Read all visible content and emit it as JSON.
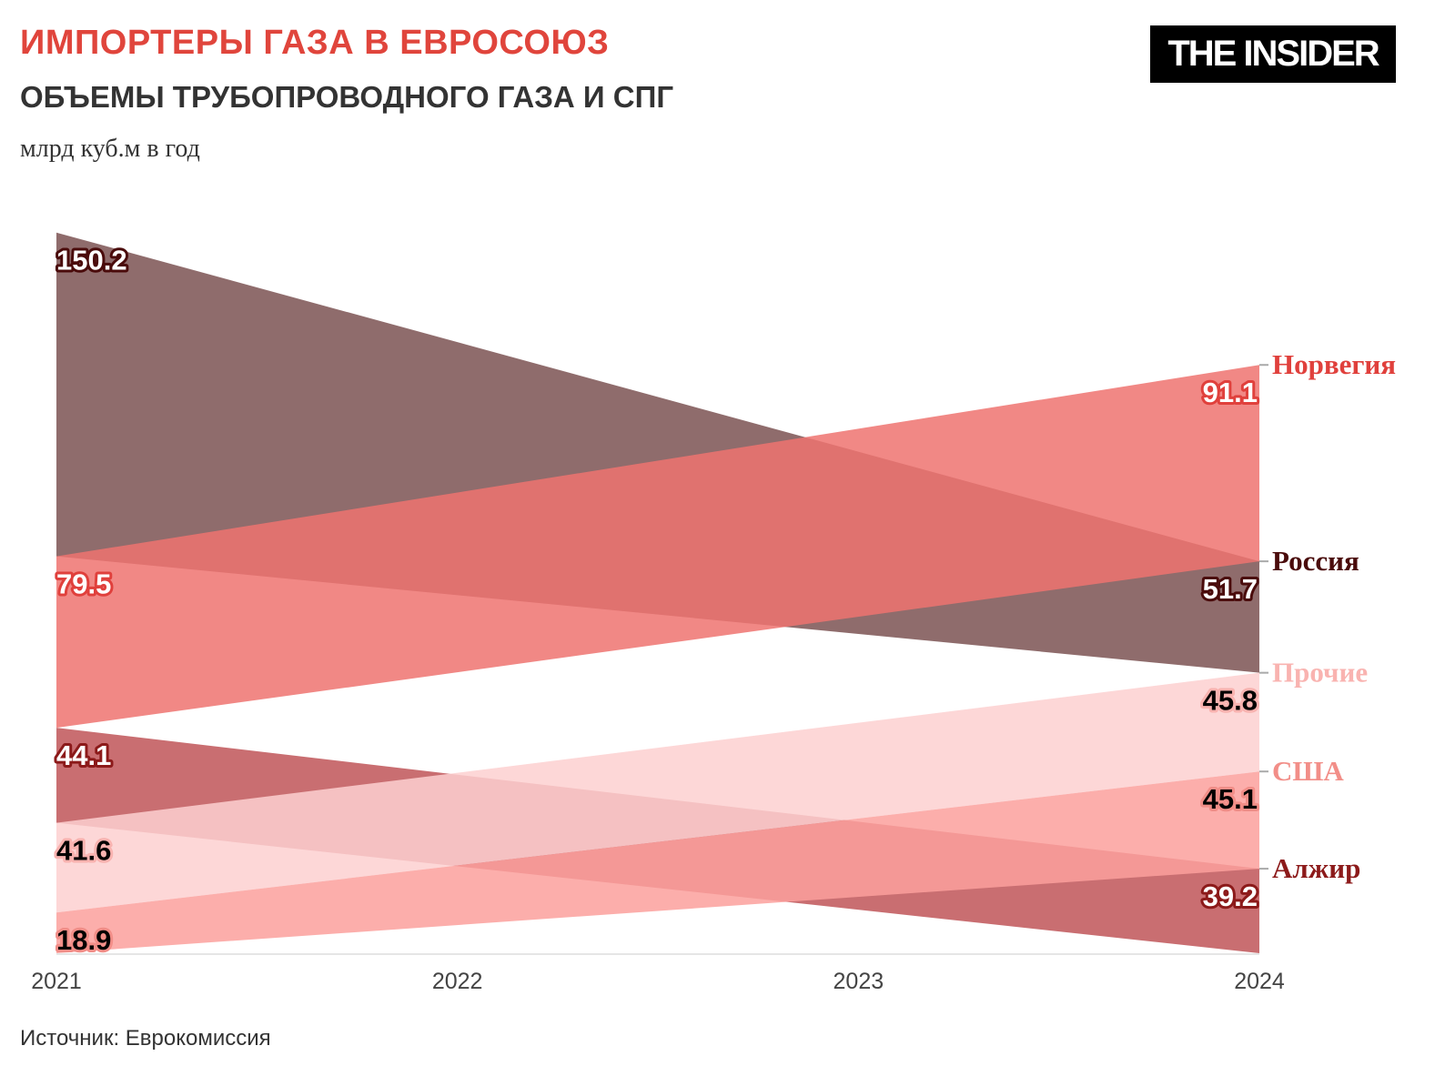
{
  "header": {
    "title": "ИМПОРТЕРЫ ГАЗА В ЕВРОСОЮЗ",
    "subtitle": "ОБЪЕМЫ ТРУБОПРОВОДНОГО ГАЗА И СПГ",
    "unit": "млрд куб.м в год",
    "logo": "THE INSIDER"
  },
  "footer": {
    "source": "Источник: Еврокомиссия"
  },
  "chart_data": {
    "type": "area",
    "x": [
      "2021",
      "2024"
    ],
    "x_ticks": [
      "2021",
      "2022",
      "2023",
      "2024"
    ],
    "series": [
      {
        "name": "Россия",
        "values": [
          150.2,
          51.7
        ],
        "color": "#7b5252",
        "label_color": "#4a0b0b",
        "text": "#fff"
      },
      {
        "name": "Норвегия",
        "values": [
          79.5,
          91.1
        ],
        "color": "#ee7370",
        "label_color": "#e0403c",
        "text": "#fff"
      },
      {
        "name": "Алжир",
        "values": [
          44.1,
          39.2
        ],
        "color": "#c05558",
        "label_color": "#8c1a1a",
        "text": "#fff"
      },
      {
        "name": "Прочие",
        "values": [
          41.6,
          45.8
        ],
        "color": "#fdd0d0",
        "label_color": "#f9b3b0",
        "text": "#000"
      },
      {
        "name": "США",
        "values": [
          18.9,
          45.1
        ],
        "color": "#fca09c",
        "label_color": "#f28e88",
        "text": "#000"
      }
    ]
  }
}
